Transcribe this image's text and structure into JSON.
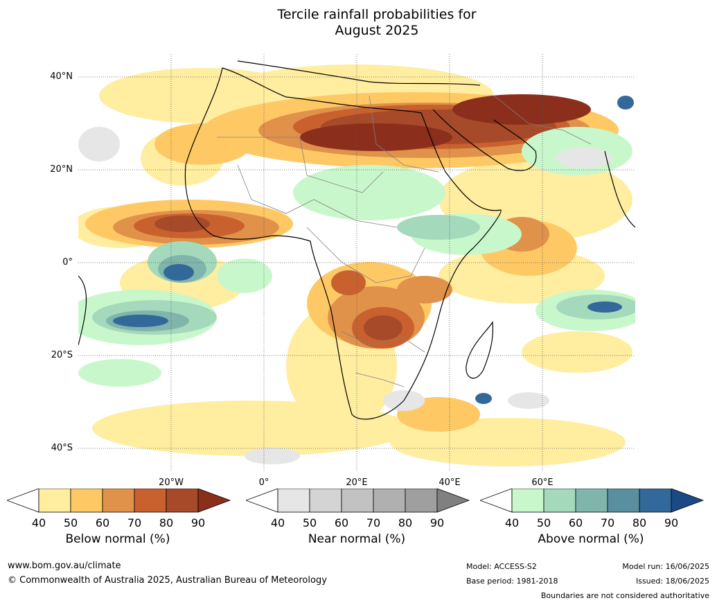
{
  "title_line1": "Tercile rainfall probabilities for",
  "title_line2": "August 2025",
  "lat_labels": [
    "40°N",
    "20°N",
    "0°",
    "20°S",
    "40°S"
  ],
  "lon_labels": [
    "20°W",
    "0°",
    "20°E",
    "40°E",
    "60°E"
  ],
  "colorbars": [
    {
      "name": "Below normal (%)",
      "ticks": [
        "40",
        "50",
        "60",
        "70",
        "80",
        "90"
      ],
      "colors": [
        "#ffffff",
        "#ffeda0",
        "#fec965",
        "#e0914a",
        "#c9612f",
        "#a64a2a",
        "#8b2e1c"
      ]
    },
    {
      "name": "Near normal (%)",
      "ticks": [
        "40",
        "50",
        "60",
        "70",
        "80",
        "90"
      ],
      "colors": [
        "#ffffff",
        "#e6e6e6",
        "#d4d4d4",
        "#c2c2c2",
        "#b0b0b0",
        "#9f9f9f",
        "#808080"
      ]
    },
    {
      "name": "Above normal (%)",
      "ticks": [
        "40",
        "50",
        "60",
        "70",
        "80",
        "90"
      ],
      "colors": [
        "#ffffff",
        "#c9f7cc",
        "#a4d9bc",
        "#80b5ab",
        "#5a8f9f",
        "#33699a",
        "#1a4a85"
      ]
    }
  ],
  "footer": {
    "website": "www.bom.gov.au/climate",
    "copyright": "© Commonwealth of Australia 2025, Australian Bureau of Meteorology",
    "model": "Model: ACCESS-S2",
    "base_period": "Base period: 1981-2018",
    "model_run": "Model run: 16/06/2025",
    "issued": "Issued: 18/06/2025",
    "disclaimer": "Boundaries are not considered authoritative"
  }
}
